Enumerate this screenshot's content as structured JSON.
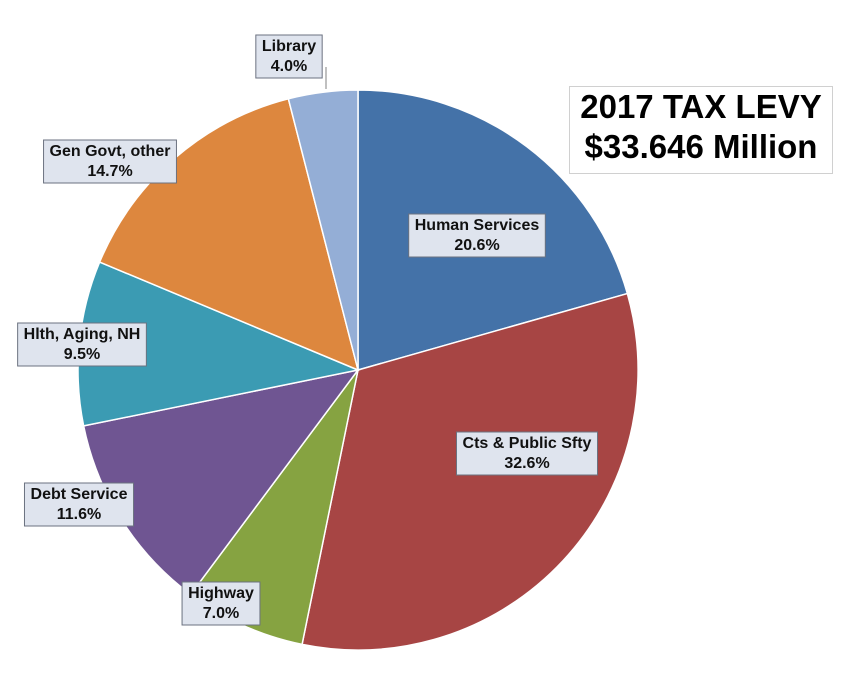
{
  "chart_data": {
    "type": "pie",
    "title": "2017 TAX LEVY",
    "subtitle": "$33.646 Million",
    "start_angle_deg": 0,
    "direction": "clockwise",
    "slices": [
      {
        "label": "Human Services",
        "value": 20.6,
        "display": "20.6%",
        "color": "#4472a8"
      },
      {
        "label": "Cts & Public Sfty",
        "value": 32.6,
        "display": "32.6%",
        "color": "#a74544"
      },
      {
        "label": "Highway",
        "value": 7.0,
        "display": "7.0%",
        "color": "#86a341"
      },
      {
        "label": "Debt Service",
        "value": 11.6,
        "display": "11.6%",
        "color": "#6f5592"
      },
      {
        "label": "Hlth, Aging, NH",
        "value": 9.5,
        "display": "9.5%",
        "color": "#3b9bb3"
      },
      {
        "label": "Gen Govt, other",
        "value": 14.7,
        "display": "14.7%",
        "color": "#dd873e"
      },
      {
        "label": "Library",
        "value": 4.0,
        "display": "4.0%",
        "color": "#94aed6"
      }
    ]
  }
}
